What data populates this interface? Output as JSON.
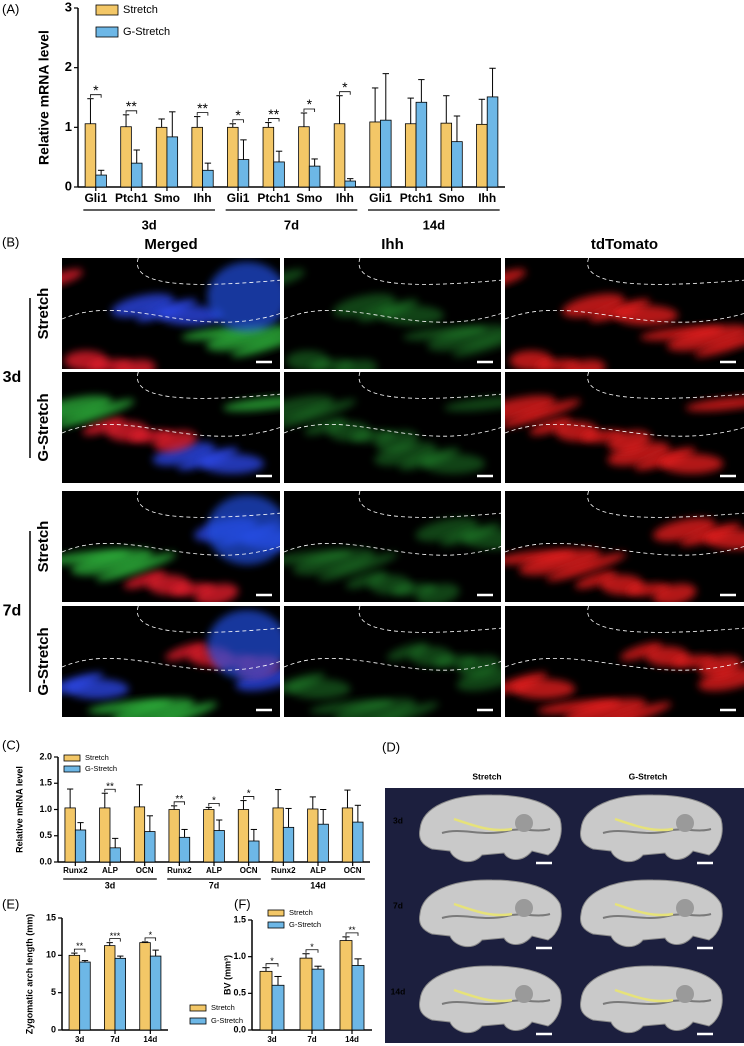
{
  "panel_labels": [
    "(A)",
    "(B)",
    "(C)",
    "(D)",
    "(E)",
    "(F)"
  ],
  "chart_data": [
    {
      "type": "bar",
      "ylabel": "Relative mRNA level",
      "categories": [
        "Gli1",
        "Ptch1",
        "Smo",
        "Ihh",
        "Gli1",
        "Ptch1",
        "Smo",
        "Ihh",
        "Gli1",
        "Ptch1",
        "Smo",
        "Ihh"
      ],
      "group_labels": [
        "3d",
        "7d",
        "14d"
      ],
      "series": [
        {
          "name": "Stretch",
          "color": "#f3c767",
          "values": [
            1.06,
            1.01,
            1.0,
            1.0,
            1.0,
            1.0,
            1.01,
            1.06,
            1.09,
            1.06,
            1.07,
            1.05
          ],
          "errors": [
            0.42,
            0.2,
            0.14,
            0.18,
            0.06,
            0.08,
            0.23,
            0.47,
            0.57,
            0.43,
            0.46,
            0.42
          ]
        },
        {
          "name": "G-Stretch",
          "color": "#6db7e6",
          "values": [
            0.2,
            0.4,
            0.84,
            0.28,
            0.46,
            0.42,
            0.35,
            0.1,
            1.12,
            1.42,
            0.76,
            1.51
          ],
          "errors": [
            0.08,
            0.22,
            0.42,
            0.12,
            0.33,
            0.18,
            0.12,
            0.04,
            0.78,
            0.38,
            0.43,
            0.48
          ]
        }
      ],
      "significance": [
        "*",
        "**",
        null,
        "**",
        "*",
        "**",
        "*",
        "*",
        null,
        null,
        null,
        null
      ],
      "ylim": [
        0,
        3
      ],
      "yticks": [
        0,
        1,
        2,
        3
      ]
    },
    {
      "type": "bar",
      "ylabel": "Relative mRNA level",
      "categories": [
        "Runx2",
        "ALP",
        "OCN",
        "Runx2",
        "ALP",
        "OCN",
        "Runx2",
        "ALP",
        "OCN"
      ],
      "group_labels": [
        "3d",
        "7d",
        "14d"
      ],
      "series": [
        {
          "name": "Stretch",
          "color": "#f3c767",
          "values": [
            1.03,
            1.03,
            1.05,
            1.0,
            1.0,
            1.0,
            1.03,
            1.01,
            1.03
          ],
          "errors": [
            0.36,
            0.28,
            0.42,
            0.07,
            0.04,
            0.17,
            0.35,
            0.23,
            0.34
          ]
        },
        {
          "name": "G-Stretch",
          "color": "#6db7e6",
          "values": [
            0.61,
            0.27,
            0.58,
            0.47,
            0.6,
            0.4,
            0.66,
            0.72,
            0.76
          ],
          "errors": [
            0.14,
            0.18,
            0.3,
            0.15,
            0.2,
            0.22,
            0.36,
            0.28,
            0.32
          ]
        }
      ],
      "significance": [
        null,
        "**",
        null,
        "**",
        "*",
        "*",
        null,
        null,
        null
      ],
      "ylim": [
        0,
        2
      ],
      "yticks": [
        {
          "value": 0,
          "label": "0.0"
        },
        {
          "value": 0.5,
          "label": "0.5"
        },
        {
          "value": 1,
          "label": "1.0"
        },
        {
          "value": 1.5,
          "label": "1.5"
        },
        {
          "value": 2,
          "label": "2.0"
        }
      ]
    },
    {
      "type": "bar",
      "ylabel": "Zygomatic arch length (mm)",
      "categories": [
        "3d",
        "7d",
        "14d"
      ],
      "series": [
        {
          "name": "Stretch",
          "color": "#f3c767",
          "values": [
            10.0,
            11.3,
            11.7
          ],
          "errors": [
            0.3,
            0.4,
            0.1
          ]
        },
        {
          "name": "G-Stretch",
          "color": "#6db7e6",
          "values": [
            9.1,
            9.6,
            9.9
          ],
          "errors": [
            0.2,
            0.3,
            0.8
          ]
        }
      ],
      "significance": [
        "**",
        "***",
        "*"
      ],
      "ylim": [
        0,
        15
      ],
      "yticks": [
        0,
        5,
        10,
        15
      ]
    },
    {
      "type": "bar",
      "ylabel": "BV (mm³)",
      "categories": [
        "3d",
        "7d",
        "14d"
      ],
      "series": [
        {
          "name": "Stretch",
          "color": "#f3c767",
          "values": [
            0.8,
            0.98,
            1.22
          ],
          "errors": [
            0.05,
            0.06,
            0.05
          ]
        },
        {
          "name": "G-Stretch",
          "color": "#6db7e6",
          "values": [
            0.61,
            0.83,
            0.88
          ],
          "errors": [
            0.12,
            0.04,
            0.09
          ]
        }
      ],
      "significance": [
        "*",
        "*",
        "**"
      ],
      "ylim": [
        0,
        1.5
      ],
      "yticks": [
        {
          "value": 0,
          "label": "0.0"
        },
        {
          "value": 0.5,
          "label": "0.5"
        },
        {
          "value": 1,
          "label": "1.0"
        },
        {
          "value": 1.5,
          "label": "1.5"
        }
      ]
    }
  ],
  "panel_b": {
    "columns": [
      "Merged",
      "Ihh",
      "tdTomato"
    ],
    "rows": [
      "Stretch",
      "G-Stretch",
      "Stretch",
      "G-Stretch"
    ],
    "groups": [
      "3d",
      "7d"
    ]
  },
  "panel_d": {
    "columns": [
      "Stretch",
      "G-Stretch"
    ],
    "rows": [
      "3d",
      "7d",
      "14d"
    ]
  }
}
